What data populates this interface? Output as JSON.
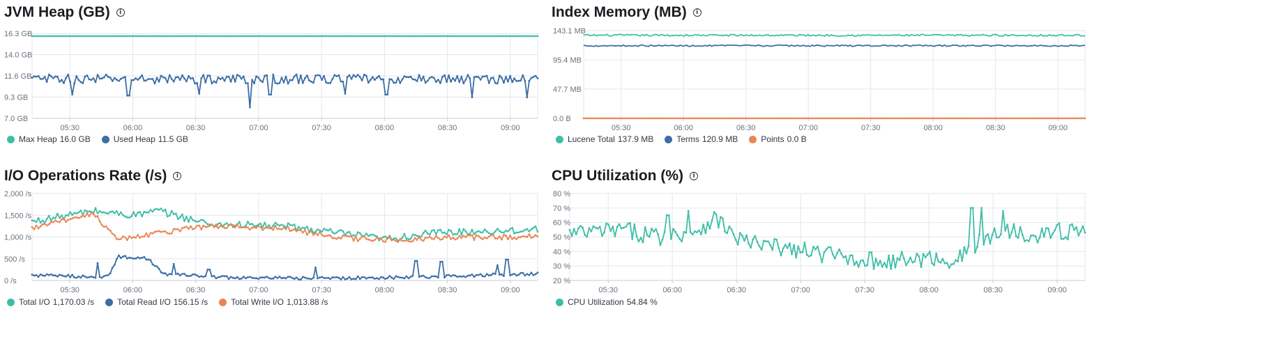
{
  "colors": {
    "teal": "#3fbea6",
    "blue": "#3b6ea5",
    "orange": "#ea8655",
    "grid": "#e3e6ec",
    "axis": "#c7ccd4"
  },
  "panels": [
    {
      "title": "JVM Heap (GB)",
      "icon": "info-icon",
      "legend": [
        {
          "label": "Max Heap",
          "value": "16.0 GB",
          "color": "#3fbea6"
        },
        {
          "label": "Used Heap",
          "value": "11.5 GB",
          "color": "#3b6ea5"
        }
      ],
      "chart_data": {
        "type": "line",
        "x_ticks": [
          "05:30",
          "06:00",
          "06:30",
          "07:00",
          "07:30",
          "08:00",
          "08:30",
          "09:00"
        ],
        "y_ticks": [
          "16.3 GB",
          "14.0 GB",
          "11.6 GB",
          "9.3 GB",
          "7.0 GB"
        ],
        "ylim": [
          7.0,
          16.3
        ],
        "x_range": [
          "05:12",
          "09:13"
        ],
        "series": [
          {
            "name": "Max Heap",
            "color": "#3fbea6",
            "marker": true,
            "base": 16.0,
            "noise": 0.0,
            "drops": []
          },
          {
            "name": "Used Heap",
            "color": "#3b6ea5",
            "marker": true,
            "base": 11.3,
            "noise": 0.5,
            "drops": [
              [
                0.08,
                9.6
              ],
              [
                0.19,
                9.5
              ],
              [
                0.33,
                9.7
              ],
              [
                0.43,
                8.2
              ],
              [
                0.47,
                9.6
              ],
              [
                0.62,
                9.7
              ],
              [
                0.7,
                9.6
              ],
              [
                0.87,
                9.3
              ],
              [
                0.98,
                9.3
              ]
            ]
          }
        ]
      }
    },
    {
      "title": "Index Memory (MB)",
      "icon": "info-icon",
      "legend": [
        {
          "label": "Lucene Total",
          "value": "137.9 MB",
          "color": "#3fbea6"
        },
        {
          "label": "Terms",
          "value": "120.9 MB",
          "color": "#3b6ea5"
        },
        {
          "label": "Points",
          "value": "0.0 B",
          "color": "#ea8655"
        }
      ],
      "chart_data": {
        "type": "line",
        "x_ticks": [
          "05:30",
          "06:00",
          "06:30",
          "07:00",
          "07:30",
          "08:00",
          "08:30",
          "09:00"
        ],
        "y_ticks": [
          "143.1 MB",
          "95.4 MB",
          "47.7 MB",
          "0.0 B"
        ],
        "ylim": [
          0,
          143.1
        ],
        "x_range": [
          "05:12",
          "09:13"
        ],
        "series": [
          {
            "name": "Lucene Total",
            "color": "#3fbea6",
            "marker": false,
            "base": 135.5,
            "noise": 1.5,
            "drops": []
          },
          {
            "name": "Terms",
            "color": "#3b6ea5",
            "marker": false,
            "base": 118.5,
            "noise": 1.2,
            "drops": []
          },
          {
            "name": "Points",
            "color": "#ea8655",
            "marker": true,
            "base": 0.0,
            "noise": 0.0,
            "drops": []
          }
        ]
      }
    },
    {
      "title": "I/O Operations Rate (/s)",
      "icon": "info-icon",
      "legend": [
        {
          "label": "Total I/O",
          "value": "1,170.03 /s",
          "color": "#3fbea6"
        },
        {
          "label": "Total Read I/O",
          "value": "156.15 /s",
          "color": "#3b6ea5"
        },
        {
          "label": "Total Write I/O",
          "value": "1,013.88 /s",
          "color": "#ea8655"
        }
      ],
      "chart_data": {
        "type": "line",
        "x_ticks": [
          "05:30",
          "06:00",
          "06:30",
          "07:00",
          "07:30",
          "08:00",
          "08:30",
          "09:00"
        ],
        "y_ticks": [
          "2,000 /s",
          "1,500 /s",
          "1,000 /s",
          "500 /s",
          "0 /s"
        ],
        "ylim": [
          0,
          2000
        ],
        "x_range": [
          "05:12",
          "09:13"
        ],
        "series": [
          {
            "name": "Total I/O",
            "color": "#3fbea6",
            "marker": true,
            "noise": 80,
            "trend": [
              [
                0.0,
                1350
              ],
              [
                0.12,
                1600
              ],
              [
                0.2,
                1500
              ],
              [
                0.25,
                1600
              ],
              [
                0.35,
                1300
              ],
              [
                0.5,
                1250
              ],
              [
                0.6,
                1100
              ],
              [
                0.7,
                950
              ],
              [
                0.8,
                1100
              ],
              [
                1.0,
                1170
              ]
            ]
          },
          {
            "name": "Total Read I/O",
            "color": "#3b6ea5",
            "marker": true,
            "noise": 35,
            "trend": [
              [
                0.0,
                120
              ],
              [
                0.15,
                80
              ],
              [
                0.17,
                550
              ],
              [
                0.23,
                500
              ],
              [
                0.26,
                150
              ],
              [
                0.4,
                60
              ],
              [
                0.6,
                50
              ],
              [
                0.8,
                90
              ],
              [
                1.0,
                156
              ]
            ],
            "spikes": [
              [
                0.13,
                400
              ],
              [
                0.28,
                380
              ],
              [
                0.35,
                250
              ],
              [
                0.56,
                300
              ],
              [
                0.76,
                450
              ],
              [
                0.81,
                430
              ],
              [
                0.94,
                480
              ],
              [
                0.92,
                350
              ]
            ]
          },
          {
            "name": "Total Write I/O",
            "color": "#ea8655",
            "marker": true,
            "noise": 60,
            "trend": [
              [
                0.0,
                1200
              ],
              [
                0.12,
                1550
              ],
              [
                0.17,
                950
              ],
              [
                0.25,
                1100
              ],
              [
                0.35,
                1250
              ],
              [
                0.5,
                1200
              ],
              [
                0.6,
                1000
              ],
              [
                0.7,
                920
              ],
              [
                0.8,
                980
              ],
              [
                1.0,
                1014
              ]
            ]
          }
        ]
      }
    },
    {
      "title": "CPU Utilization (%)",
      "icon": "info-icon",
      "legend": [
        {
          "label": "CPU Utilization",
          "value": "54.84 %",
          "color": "#3fbea6"
        }
      ],
      "chart_data": {
        "type": "line",
        "x_ticks": [
          "05:30",
          "06:00",
          "06:30",
          "07:00",
          "07:30",
          "08:00",
          "08:30",
          "09:00"
        ],
        "y_ticks": [
          "80 %",
          "70 %",
          "60 %",
          "50 %",
          "40 %",
          "30 %",
          "20 %"
        ],
        "ylim": [
          20,
          80
        ],
        "x_range": [
          "05:12",
          "09:13"
        ],
        "series": [
          {
            "name": "CPU Utilization",
            "color": "#3fbea6",
            "marker": true,
            "noise": 6,
            "trend": [
              [
                0.0,
                52
              ],
              [
                0.1,
                55
              ],
              [
                0.18,
                50
              ],
              [
                0.25,
                55
              ],
              [
                0.28,
                63
              ],
              [
                0.3,
                58
              ],
              [
                0.32,
                50
              ],
              [
                0.36,
                45
              ],
              [
                0.5,
                38
              ],
              [
                0.6,
                33
              ],
              [
                0.7,
                35
              ],
              [
                0.75,
                34
              ],
              [
                0.8,
                48
              ],
              [
                0.85,
                55
              ],
              [
                0.9,
                52
              ],
              [
                1.0,
                55
              ]
            ],
            "spikes": [
              [
                0.19,
                65
              ],
              [
                0.23,
                68
              ],
              [
                0.78,
                70
              ],
              [
                0.8,
                70
              ],
              [
                0.84,
                68
              ],
              [
                0.97,
                58
              ]
            ]
          }
        ]
      }
    }
  ]
}
